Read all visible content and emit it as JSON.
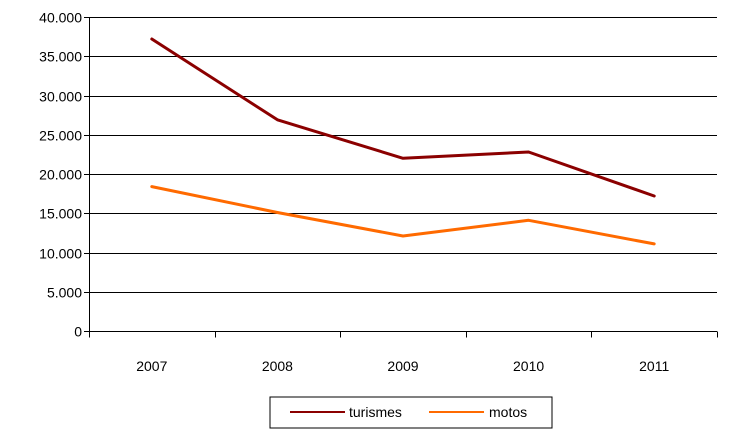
{
  "chart_data": {
    "type": "line",
    "title": "",
    "xlabel": "",
    "ylabel": "",
    "categories": [
      "2007",
      "2008",
      "2009",
      "2010",
      "2011"
    ],
    "ylim": [
      0,
      40000
    ],
    "yticks": [
      0,
      5000,
      10000,
      15000,
      20000,
      25000,
      30000,
      35000,
      40000
    ],
    "ytick_labels": [
      "0",
      "5.000",
      "10.000",
      "15.000",
      "20.000",
      "25.000",
      "30.000",
      "35.000",
      "40.000"
    ],
    "grid": "horizontal",
    "legend_position": "bottom",
    "series": [
      {
        "name": "turismes",
        "color": "#8b0000",
        "values": [
          37200,
          26900,
          22000,
          22800,
          17200
        ]
      },
      {
        "name": "motos",
        "color": "#ff6a00",
        "values": [
          18400,
          15100,
          12100,
          14100,
          11100
        ]
      }
    ]
  }
}
